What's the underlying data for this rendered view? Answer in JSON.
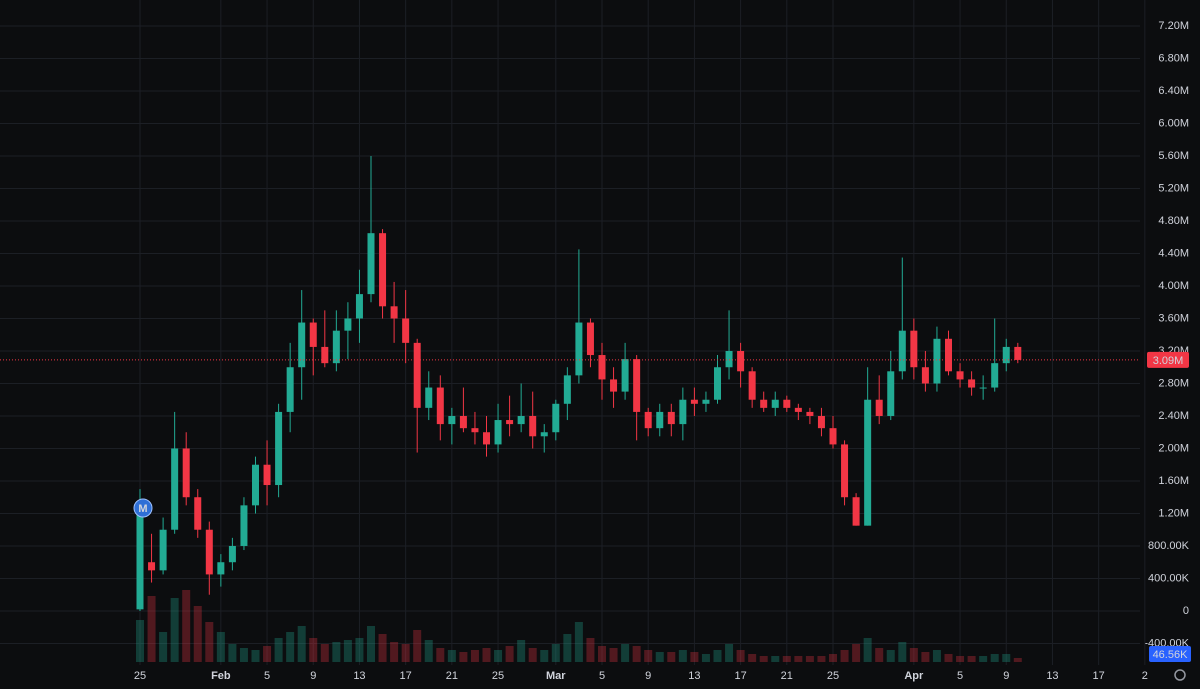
{
  "chart_data": {
    "type": "candlestick",
    "categories": [
      "25",
      null,
      null,
      null,
      null,
      null,
      null,
      "Feb",
      null,
      null,
      null,
      "5",
      null,
      null,
      null,
      "9",
      null,
      null,
      null,
      "13",
      null,
      null,
      null,
      "17",
      null,
      null,
      null,
      "21",
      null,
      null,
      null,
      "25",
      null,
      null,
      null,
      null,
      "Mar",
      null,
      null,
      null,
      "5",
      null,
      null,
      null,
      "9",
      null,
      null,
      null,
      "13",
      null,
      null,
      null,
      "17",
      null,
      null,
      null,
      "21",
      null,
      null,
      null,
      "25",
      null,
      null,
      null,
      null,
      null,
      null,
      "Apr",
      null,
      null,
      null,
      "5",
      null,
      null,
      null,
      "9",
      null,
      null,
      null,
      "13",
      null,
      null,
      null,
      "17",
      null,
      null,
      null,
      "2"
    ],
    "open": [
      20000,
      600000,
      500000,
      1000000,
      2000000,
      1400000,
      1000000,
      450000,
      600000,
      800000,
      1300000,
      1800000,
      1550000,
      2450000,
      3000000,
      3550000,
      3250000,
      3050000,
      3450000,
      3600000,
      3900000,
      4650000,
      3750000,
      3600000,
      3300000,
      2500000,
      2750000,
      2300000,
      2400000,
      2250000,
      2200000,
      2050000,
      2350000,
      2300000,
      2400000,
      2150000,
      2200000,
      2550000,
      2900000,
      3550000,
      3150000,
      2850000,
      2700000,
      3100000,
      2450000,
      2250000,
      2450000,
      2300000,
      2600000,
      2550000,
      2600000,
      3000000,
      3200000,
      2950000,
      2600000,
      2500000,
      2600000,
      2500000,
      2450000,
      2400000,
      2250000,
      2050000,
      1400000,
      1050000,
      2600000,
      2400000,
      2950000,
      3450000,
      3000000,
      2800000,
      3350000,
      2950000,
      2850000,
      2750000,
      2750000,
      3050000,
      3250000,
      null,
      null,
      null,
      null,
      null,
      null,
      null,
      null,
      null,
      null,
      null
    ],
    "high": [
      1500000,
      950000,
      1150000,
      2450000,
      2200000,
      1500000,
      1100000,
      700000,
      900000,
      1400000,
      1900000,
      2100000,
      2550000,
      3300000,
      3950000,
      3600000,
      3700000,
      3700000,
      3800000,
      4200000,
      5600000,
      4700000,
      4050000,
      3950000,
      3350000,
      2950000,
      2900000,
      2500000,
      2750000,
      2450000,
      2400000,
      2550000,
      2650000,
      2800000,
      2700000,
      2300000,
      2600000,
      3000000,
      4450000,
      3600000,
      3300000,
      3000000,
      3300000,
      3150000,
      2500000,
      2550000,
      2550000,
      2750000,
      2750000,
      2700000,
      3150000,
      3700000,
      3300000,
      3000000,
      2700000,
      2700000,
      2650000,
      2550000,
      2500000,
      2500000,
      2400000,
      2100000,
      1450000,
      3000000,
      2900000,
      3200000,
      4350000,
      3600000,
      3200000,
      3500000,
      3450000,
      3050000,
      2950000,
      2900000,
      3600000,
      3350000,
      3300000,
      null,
      null,
      null,
      null,
      null,
      null,
      null,
      null,
      null,
      null,
      null
    ],
    "low": [
      0,
      350000,
      450000,
      950000,
      1300000,
      900000,
      200000,
      300000,
      500000,
      750000,
      1200000,
      1300000,
      1400000,
      2200000,
      2600000,
      2900000,
      3000000,
      2950000,
      3100000,
      3300000,
      3800000,
      3600000,
      3300000,
      3050000,
      1950000,
      2350000,
      2100000,
      2050000,
      2200000,
      2050000,
      1900000,
      1950000,
      2150000,
      2200000,
      2000000,
      1950000,
      2100000,
      2350000,
      2800000,
      3000000,
      2600000,
      2500000,
      2600000,
      2100000,
      2150000,
      2150000,
      2150000,
      2100000,
      2400000,
      2450000,
      2550000,
      2850000,
      2750000,
      2500000,
      2450000,
      2400000,
      2450000,
      2350000,
      2300000,
      2150000,
      2000000,
      1300000,
      1050000,
      1050000,
      2300000,
      2350000,
      2850000,
      2850000,
      2700000,
      2700000,
      2900000,
      2750000,
      2650000,
      2600000,
      2700000,
      2950000,
      3050000,
      null,
      null,
      null,
      null,
      null,
      null,
      null,
      null,
      null,
      null,
      null
    ],
    "close": [
      1280000,
      500000,
      1000000,
      2000000,
      1400000,
      1000000,
      450000,
      600000,
      800000,
      1300000,
      1800000,
      1550000,
      2450000,
      3000000,
      3550000,
      3250000,
      3050000,
      3450000,
      3600000,
      3900000,
      4650000,
      3750000,
      3600000,
      3300000,
      2500000,
      2750000,
      2300000,
      2400000,
      2250000,
      2200000,
      2050000,
      2350000,
      2300000,
      2400000,
      2150000,
      2200000,
      2550000,
      2900000,
      3550000,
      3150000,
      2850000,
      2700000,
      3100000,
      2450000,
      2250000,
      2450000,
      2300000,
      2600000,
      2550000,
      2600000,
      3000000,
      3200000,
      2950000,
      2600000,
      2500000,
      2600000,
      2500000,
      2450000,
      2400000,
      2250000,
      2050000,
      1400000,
      1050000,
      2600000,
      2400000,
      2950000,
      3450000,
      3000000,
      2800000,
      3350000,
      2950000,
      2850000,
      2750000,
      2750000,
      3050000,
      3250000,
      3090000,
      null,
      null,
      null,
      null,
      null,
      null,
      null,
      null,
      null,
      null,
      null
    ],
    "volume": [
      210000,
      330000,
      150000,
      320000,
      360000,
      280000,
      200000,
      150000,
      90000,
      70000,
      60000,
      80000,
      120000,
      150000,
      180000,
      120000,
      90000,
      100000,
      110000,
      120000,
      180000,
      140000,
      100000,
      90000,
      160000,
      110000,
      70000,
      60000,
      50000,
      60000,
      70000,
      60000,
      80000,
      110000,
      70000,
      60000,
      90000,
      140000,
      200000,
      120000,
      80000,
      70000,
      90000,
      80000,
      60000,
      50000,
      50000,
      60000,
      50000,
      40000,
      60000,
      90000,
      60000,
      40000,
      30000,
      30000,
      30000,
      30000,
      30000,
      30000,
      40000,
      60000,
      90000,
      120000,
      70000,
      60000,
      100000,
      70000,
      50000,
      60000,
      40000,
      30000,
      30000,
      30000,
      40000,
      40000,
      20000,
      null,
      null,
      null,
      null,
      null,
      null,
      null,
      null,
      null,
      null,
      null
    ],
    "volume_lim": [
      0,
      400000
    ],
    "up_color": "#22ab94",
    "down_color": "#f23645",
    "ylim": [
      -665000,
      7520000
    ],
    "yticks": [
      {
        "value": -400000,
        "label": "-400.00K"
      },
      0,
      {
        "value": 400000,
        "label": "400.00K"
      },
      {
        "value": 800000,
        "label": "800.00K"
      },
      {
        "value": 1200000,
        "label": "1.20M"
      },
      {
        "value": 1600000,
        "label": "1.60M"
      },
      {
        "value": 2000000,
        "label": "2.00M"
      },
      {
        "value": 2400000,
        "label": "2.40M"
      },
      {
        "value": 2800000,
        "label": "2.80M"
      },
      {
        "value": 3200000,
        "label": "3.20M"
      },
      {
        "value": 3600000,
        "label": "3.60M"
      },
      {
        "value": 4000000,
        "label": "4.00M"
      },
      {
        "value": 4400000,
        "label": "4.40M"
      },
      {
        "value": 4800000,
        "label": "4.80M"
      },
      {
        "value": 5200000,
        "label": "5.20M"
      },
      {
        "value": 5600000,
        "label": "5.60M"
      },
      {
        "value": 6000000,
        "label": "6.00M"
      },
      {
        "value": 6400000,
        "label": "6.40M"
      },
      {
        "value": 6800000,
        "label": "6.80M"
      },
      {
        "value": 7200000,
        "label": "7.20M"
      }
    ],
    "grid": true,
    "price_line": {
      "value": 3090000,
      "label": "3.09M"
    },
    "volume_ma": {
      "value": 46560,
      "label": "46.56K"
    },
    "marker": "M"
  }
}
